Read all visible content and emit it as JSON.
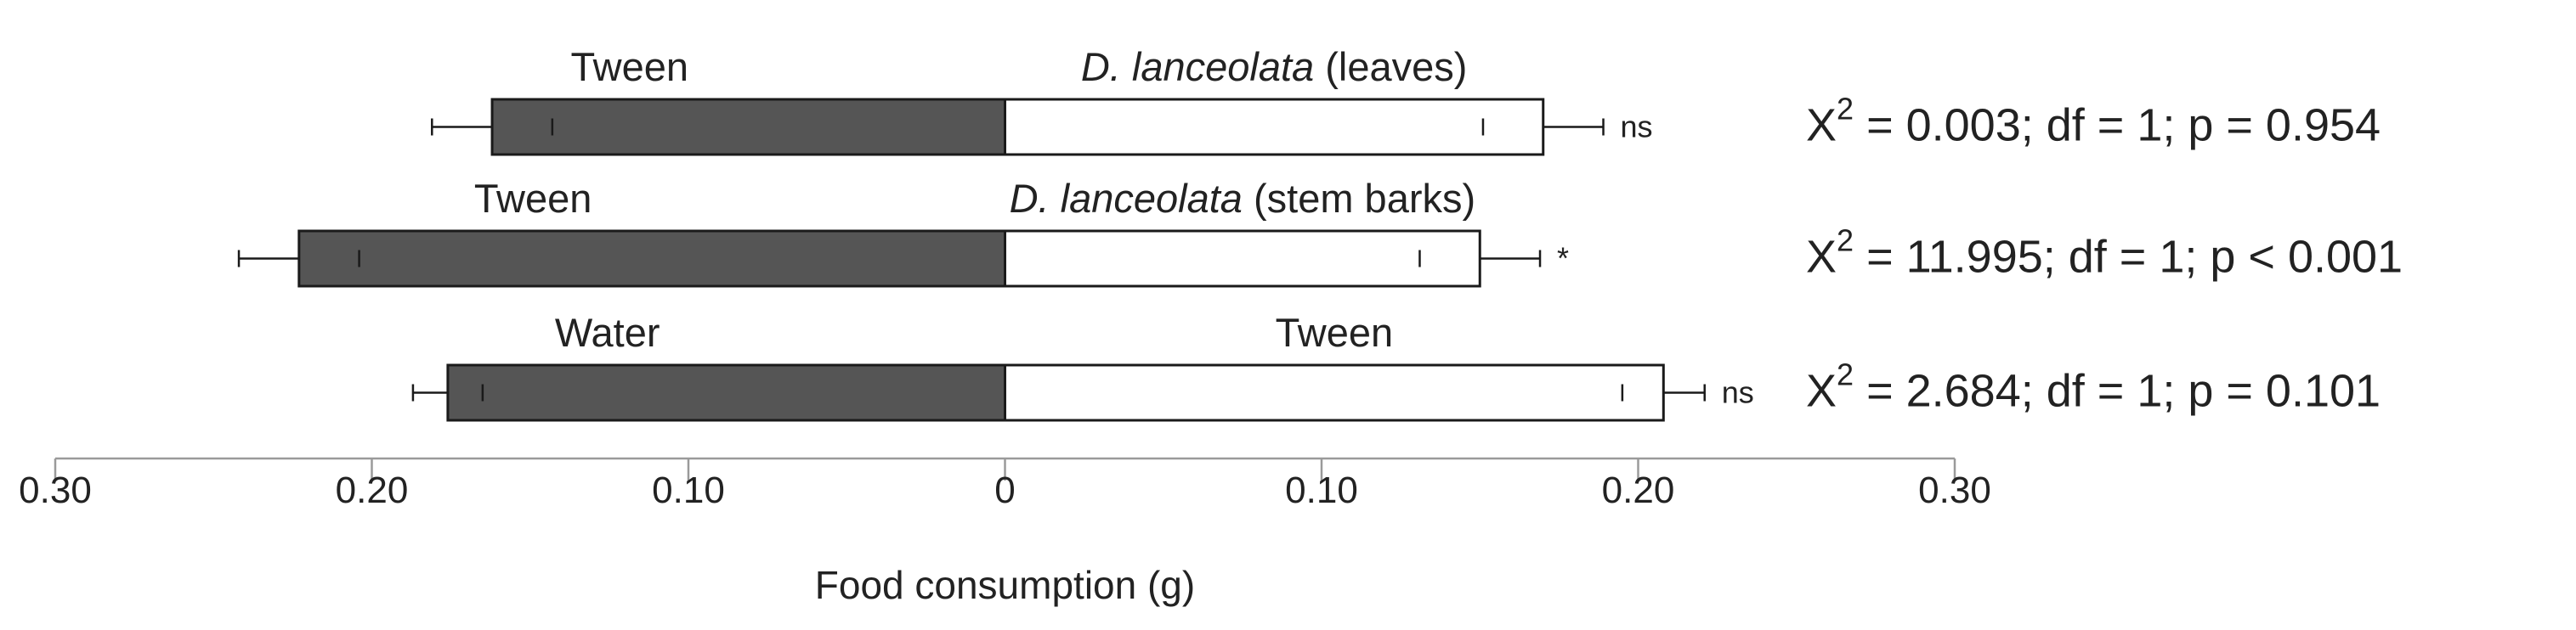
{
  "chart_data": {
    "type": "bar",
    "orientation": "horizontal",
    "layout": "diverging",
    "xlabel": "Food consumption (g)",
    "xlim": [
      -0.3,
      0.3
    ],
    "tick_values": [
      -0.3,
      -0.2,
      -0.1,
      0,
      0.1,
      0.2,
      0.3
    ],
    "tick_labels": [
      "0.30",
      "0.20",
      "0.10",
      "0",
      "0.10",
      "0.20",
      "0.30"
    ],
    "colors": {
      "left": "#555555",
      "right": "#ffffff",
      "stroke": "#1a1a1a"
    },
    "rows": [
      {
        "left_label": "Tween",
        "right_label_italic": "D. lanceolata",
        "right_label_rest": " (leaves)",
        "left_value": 0.162,
        "left_error": 0.019,
        "right_value": 0.17,
        "right_error": 0.019,
        "sig": "ns",
        "stat_prefix": "X",
        "stat_sup": "2",
        "stat_rest": " = 0.003; df = 1; p = 0.954"
      },
      {
        "left_label": "Tween",
        "right_label_italic": "D. lanceolata",
        "right_label_rest": " (stem barks)",
        "left_value": 0.223,
        "left_error": 0.019,
        "right_value": 0.15,
        "right_error": 0.019,
        "sig": "*",
        "stat_prefix": "X",
        "stat_sup": "2",
        "stat_rest": " = 11.995; df = 1; p < 0.001"
      },
      {
        "left_label": "Water",
        "right_label_italic": "",
        "right_label_rest": "Tween",
        "left_value": 0.176,
        "left_error": 0.011,
        "right_value": 0.208,
        "right_error": 0.013,
        "sig": "ns",
        "stat_prefix": "X",
        "stat_sup": "2",
        "stat_rest": " = 2.684; df = 1; p = 0.101"
      }
    ]
  }
}
